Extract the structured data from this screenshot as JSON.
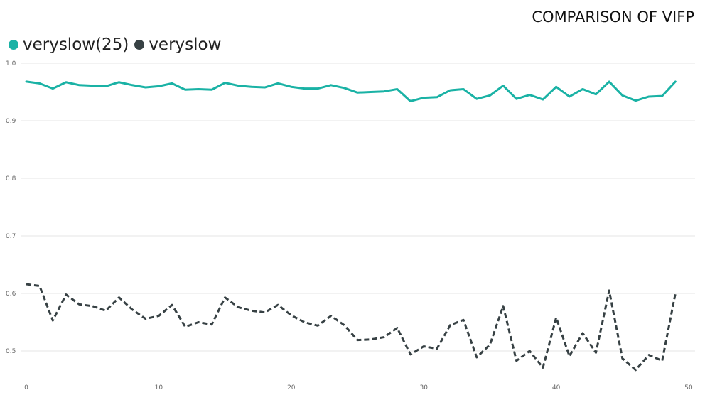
{
  "chart_data": {
    "type": "line",
    "title": "COMPARISON OF VIFP",
    "xlabel": "",
    "ylabel": "",
    "xlim": [
      0,
      50
    ],
    "ylim": [
      0.45,
      1.0
    ],
    "x_ticks": [
      0,
      10,
      20,
      30,
      40,
      50
    ],
    "y_ticks": [
      0.5,
      0.6,
      0.7,
      0.8,
      0.9,
      1.0
    ],
    "grid": "horizontal",
    "legend_position": "top-left",
    "x": [
      0,
      1,
      2,
      3,
      4,
      5,
      6,
      7,
      8,
      9,
      10,
      11,
      12,
      13,
      14,
      15,
      16,
      17,
      18,
      19,
      20,
      21,
      22,
      23,
      24,
      25,
      26,
      27,
      28,
      29,
      30,
      31,
      32,
      33,
      34,
      35,
      36,
      37,
      38,
      39,
      40,
      41,
      42,
      43,
      44,
      45,
      46,
      47,
      48,
      49
    ],
    "series": [
      {
        "name": "veryslow(25)",
        "color": "#1ab2a5",
        "style": "solid",
        "values": [
          0.968,
          0.965,
          0.956,
          0.967,
          0.962,
          0.961,
          0.96,
          0.967,
          0.962,
          0.958,
          0.96,
          0.965,
          0.954,
          0.955,
          0.954,
          0.966,
          0.961,
          0.959,
          0.958,
          0.965,
          0.959,
          0.956,
          0.956,
          0.962,
          0.957,
          0.949,
          0.95,
          0.951,
          0.955,
          0.934,
          0.94,
          0.941,
          0.953,
          0.955,
          0.938,
          0.944,
          0.961,
          0.938,
          0.945,
          0.937,
          0.959,
          0.942,
          0.955,
          0.946,
          0.968,
          0.944,
          0.935,
          0.942,
          0.943,
          0.968
        ]
      },
      {
        "name": "veryslow",
        "color": "#374144",
        "style": "dashed",
        "values": [
          0.616,
          0.613,
          0.553,
          0.598,
          0.581,
          0.578,
          0.57,
          0.593,
          0.572,
          0.556,
          0.561,
          0.58,
          0.542,
          0.55,
          0.546,
          0.593,
          0.576,
          0.57,
          0.567,
          0.58,
          0.562,
          0.55,
          0.544,
          0.561,
          0.545,
          0.519,
          0.52,
          0.524,
          0.54,
          0.494,
          0.508,
          0.504,
          0.545,
          0.554,
          0.489,
          0.511,
          0.578,
          0.483,
          0.5,
          0.471,
          0.558,
          0.491,
          0.531,
          0.497,
          0.605,
          0.487,
          0.467,
          0.493,
          0.483,
          0.6
        ]
      }
    ]
  }
}
